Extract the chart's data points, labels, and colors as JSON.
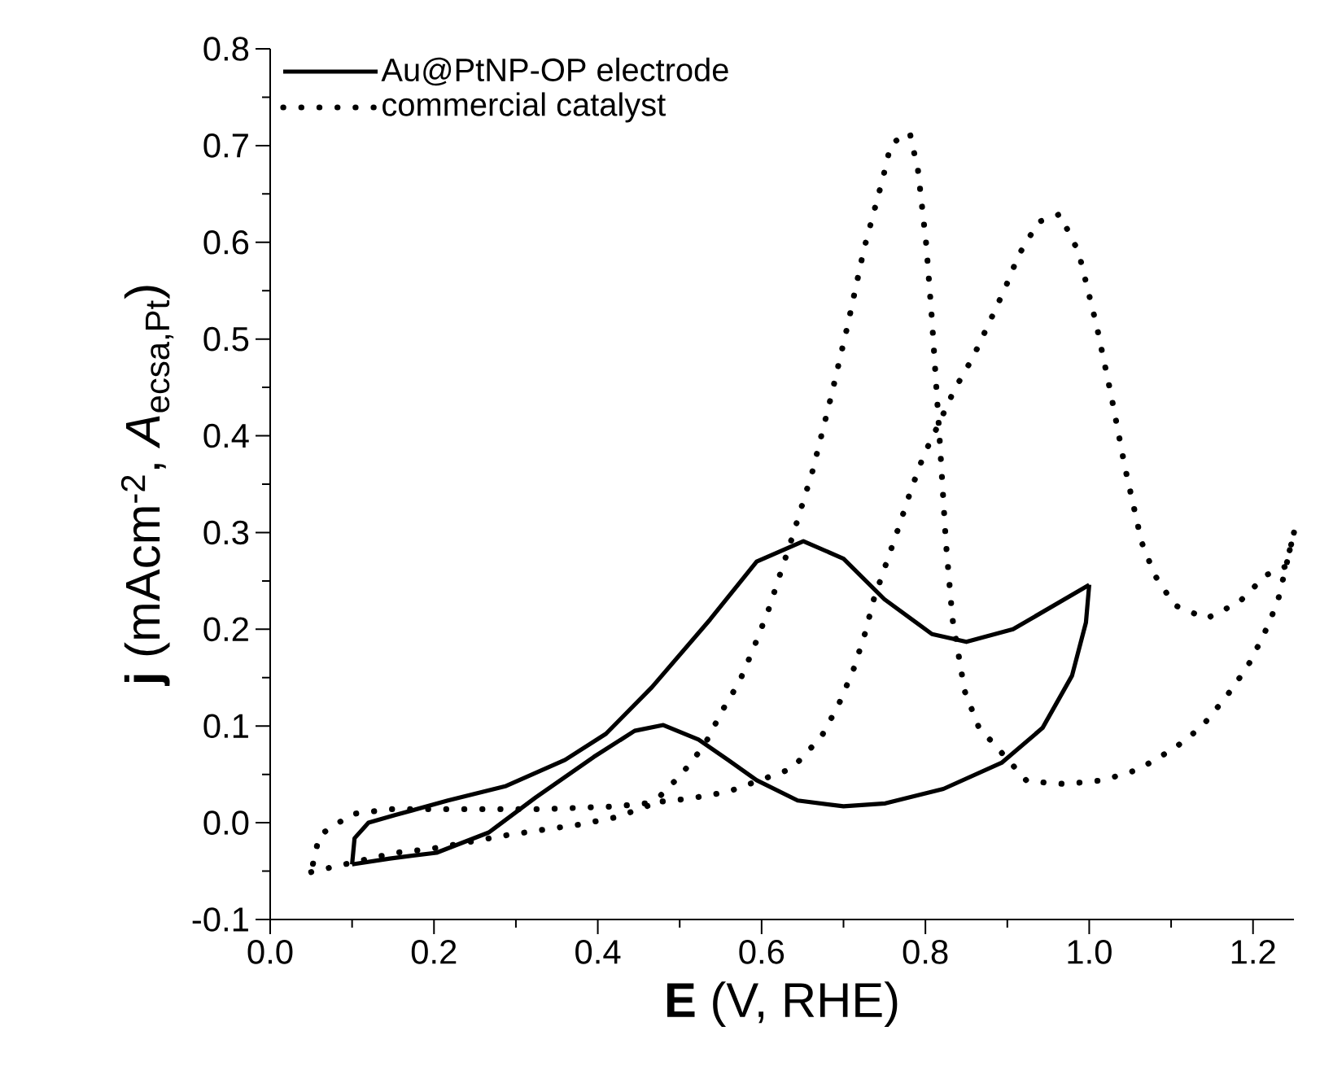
{
  "chart_data": {
    "type": "line",
    "xlabel": "**E** (V, RHE)",
    "ylabel": "**j** (mAcm$^{-2}$, *A*$_{ecsa,Pt}$)",
    "xlim": [
      0,
      1.25
    ],
    "ylim": [
      -0.1,
      0.8
    ],
    "xticks": [
      {
        "value": 0,
        "label": "0.0"
      },
      {
        "value": 0.2,
        "label": "0.2"
      },
      {
        "value": 0.4,
        "label": "0.4"
      },
      {
        "value": 0.6,
        "label": "0.6"
      },
      {
        "value": 0.8,
        "label": "0.8"
      },
      {
        "value": 1.0,
        "label": "1.0"
      },
      {
        "value": 1.2,
        "label": "1.2"
      }
    ],
    "yticks": [
      {
        "value": -0.1,
        "label": "-0.1"
      },
      {
        "value": 0,
        "label": "0.0"
      },
      {
        "value": 0.1,
        "label": "0.1"
      },
      {
        "value": 0.2,
        "label": "0.2"
      },
      {
        "value": 0.3,
        "label": "0.3"
      },
      {
        "value": 0.4,
        "label": "0.4"
      },
      {
        "value": 0.5,
        "label": "0.5"
      },
      {
        "value": 0.6,
        "label": "0.6"
      },
      {
        "value": 0.7,
        "label": "0.7"
      },
      {
        "value": 0.8,
        "label": "0.8"
      }
    ],
    "legend": "top left",
    "series": [
      {
        "name": "Au@PtNP-OP electrode",
        "color": "#000000",
        "line_style": "solid",
        "x": [
          0.1,
          0.103,
          0.12,
          0.153,
          0.217,
          0.288,
          0.36,
          0.41,
          0.466,
          0.537,
          0.594,
          0.651,
          0.7,
          0.75,
          0.808,
          0.85,
          0.907,
          1.0
        ],
        "values": [
          -0.043,
          -0.016,
          0.0,
          0.008,
          0.023,
          0.038,
          0.065,
          0.092,
          0.14,
          0.21,
          0.27,
          0.291,
          0.273,
          0.231,
          0.195,
          0.187,
          0.2,
          0.246
        ]
      },
      {
        "color": "#000000",
        "line_style": "solid",
        "x": [
          1.0,
          0.996,
          0.979,
          0.943,
          0.893,
          0.822,
          0.751,
          0.7,
          0.644,
          0.594,
          0.559,
          0.523,
          0.48,
          0.445,
          0.395,
          0.324,
          0.267,
          0.203,
          0.146,
          0.1
        ],
        "values": [
          0.246,
          0.207,
          0.152,
          0.098,
          0.062,
          0.035,
          0.02,
          0.017,
          0.023,
          0.044,
          0.065,
          0.086,
          0.101,
          0.095,
          0.068,
          0.026,
          -0.01,
          -0.031,
          -0.037,
          -0.043
        ]
      },
      {
        "name": "commercial catalyst",
        "color": "#000000",
        "line_style": "dotted",
        "x": [
          0.05,
          0.075,
          0.153,
          0.196,
          0.242,
          0.288,
          0.335,
          0.377,
          0.424,
          0.466,
          0.502,
          0.53,
          0.552,
          0.573,
          0.59,
          0.608,
          0.623,
          0.637,
          0.662,
          0.685,
          0.705,
          0.725,
          0.748,
          0.758,
          0.781,
          0.791,
          0.801,
          0.808,
          0.817,
          0.825,
          0.833,
          0.848,
          0.865,
          0.924,
          0.971,
          1.017,
          1.06,
          1.104,
          1.137,
          1.167,
          1.193,
          1.213,
          1.23,
          1.25
        ],
        "values": [
          -0.051,
          -0.046,
          -0.031,
          -0.027,
          -0.02,
          -0.013,
          -0.007,
          -0.002,
          0.006,
          0.019,
          0.05,
          0.08,
          0.116,
          0.146,
          0.18,
          0.219,
          0.258,
          0.294,
          0.363,
          0.441,
          0.514,
          0.593,
          0.666,
          0.702,
          0.713,
          0.674,
          0.598,
          0.52,
          0.402,
          0.29,
          0.211,
          0.136,
          0.099,
          0.043,
          0.04,
          0.044,
          0.055,
          0.077,
          0.099,
          0.13,
          0.161,
          0.194,
          0.228,
          0.3
        ]
      },
      {
        "color": "#000000",
        "line_style": "dotted",
        "x": [
          1.25,
          1.24,
          1.216,
          1.183,
          1.143,
          1.104,
          1.08,
          1.064,
          1.044,
          1.027,
          1.009,
          0.987,
          0.964,
          0.938,
          0.914,
          0.898,
          0.878,
          0.858,
          0.835,
          0.815,
          0.798,
          0.782,
          0.768,
          0.737,
          0.726,
          0.712,
          0.694,
          0.673,
          0.637,
          0.559,
          0.512,
          0.424,
          0.331,
          0.238,
          0.146,
          0.1,
          0.06,
          0.05
        ],
        "values": [
          0.3,
          0.265,
          0.256,
          0.228,
          0.211,
          0.225,
          0.256,
          0.29,
          0.366,
          0.441,
          0.514,
          0.59,
          0.629,
          0.621,
          0.587,
          0.554,
          0.517,
          0.481,
          0.447,
          0.41,
          0.38,
          0.343,
          0.307,
          0.231,
          0.195,
          0.158,
          0.122,
          0.089,
          0.056,
          0.032,
          0.025,
          0.017,
          0.014,
          0.014,
          0.014,
          0.009,
          -0.013,
          -0.051
        ]
      }
    ]
  }
}
